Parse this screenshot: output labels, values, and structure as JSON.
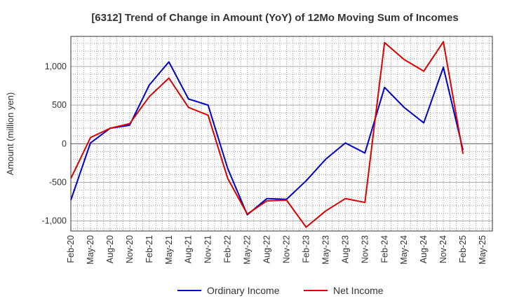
{
  "chart_data": {
    "type": "line",
    "title": "[6312]  Trend of Change in Amount (YoY) of 12Mo Moving Sum of Incomes",
    "ylabel": "Amount (million yen)",
    "xlabel": "",
    "ylim": [
      -1130,
      1390
    ],
    "yticks": [
      1000,
      500,
      0,
      -500,
      -1000
    ],
    "ytick_labels": [
      "1,000",
      "500",
      "0",
      "-500",
      "-1,000"
    ],
    "x_tick_labels": [
      "Feb-20",
      "May-20",
      "Aug-20",
      "Nov-20",
      "Feb-21",
      "May-21",
      "Aug-21",
      "Nov-21",
      "Feb-22",
      "May-22",
      "Aug-22",
      "Nov-22",
      "Feb-23",
      "May-23",
      "Aug-23",
      "Nov-23",
      "Feb-24",
      "May-24",
      "Aug-24",
      "Nov-24",
      "Feb-25",
      "May-25"
    ],
    "grid": true,
    "legend_position": "bottom",
    "series": [
      {
        "name": "Ordinary Income",
        "color": "#0000cc",
        "values": [
          -730,
          10,
          200,
          240,
          760,
          1060,
          580,
          500,
          -320,
          -920,
          -710,
          -720,
          -480,
          -200,
          10,
          -120,
          730,
          470,
          270,
          990,
          -80
        ]
      },
      {
        "name": "Net Income",
        "color": "#dd0000",
        "values": [
          -450,
          80,
          200,
          260,
          610,
          850,
          470,
          370,
          -450,
          -910,
          -740,
          -730,
          -1080,
          -870,
          -710,
          -760,
          1310,
          1090,
          940,
          1320,
          -130
        ]
      }
    ]
  }
}
